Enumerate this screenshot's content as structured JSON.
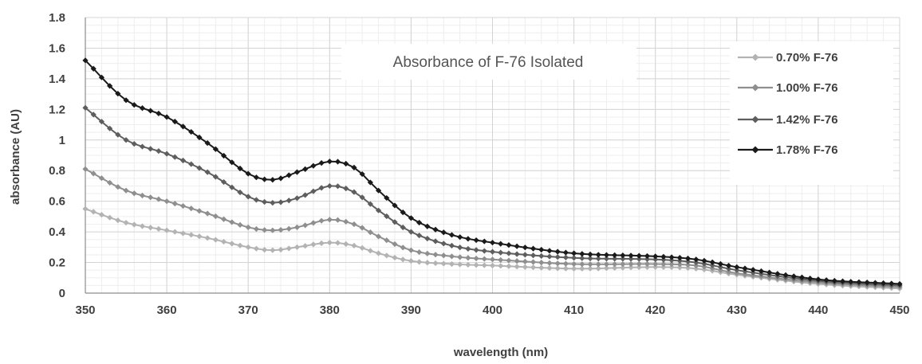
{
  "chart_data": {
    "type": "line",
    "title": "Absorbance of F-76 Isolated",
    "xlabel": "wavelength (nm)",
    "ylabel": "absorbance (AU)",
    "xlim": [
      350,
      450
    ],
    "ylim": [
      0,
      1.8
    ],
    "x_ticks": [
      "350",
      "360",
      "370",
      "380",
      "390",
      "400",
      "410",
      "420",
      "430",
      "440",
      "450"
    ],
    "y_ticks": [
      "0",
      "0.2",
      "0.4",
      "0.6",
      "0.8",
      "1",
      "1.2",
      "1.4",
      "1.6",
      "1.8"
    ],
    "grid": true,
    "legend_position": "top-right",
    "series": [
      {
        "name": "0.70% F-76",
        "color": "#b3b3b3",
        "points": [
          [
            350,
            0.55
          ],
          [
            355,
            0.46
          ],
          [
            360,
            0.41
          ],
          [
            365,
            0.36
          ],
          [
            370,
            0.3
          ],
          [
            373,
            0.28
          ],
          [
            376,
            0.3
          ],
          [
            380,
            0.33
          ],
          [
            383,
            0.31
          ],
          [
            386,
            0.26
          ],
          [
            390,
            0.21
          ],
          [
            395,
            0.19
          ],
          [
            400,
            0.18
          ],
          [
            410,
            0.16
          ],
          [
            420,
            0.17
          ],
          [
            425,
            0.16
          ],
          [
            430,
            0.12
          ],
          [
            440,
            0.06
          ],
          [
            450,
            0.03
          ]
        ]
      },
      {
        "name": "1.00% F-76",
        "color": "#8f8f8f",
        "points": [
          [
            350,
            0.81
          ],
          [
            355,
            0.67
          ],
          [
            360,
            0.6
          ],
          [
            365,
            0.52
          ],
          [
            370,
            0.43
          ],
          [
            373,
            0.41
          ],
          [
            376,
            0.43
          ],
          [
            380,
            0.48
          ],
          [
            383,
            0.45
          ],
          [
            386,
            0.37
          ],
          [
            390,
            0.28
          ],
          [
            395,
            0.24
          ],
          [
            400,
            0.22
          ],
          [
            410,
            0.19
          ],
          [
            420,
            0.19
          ],
          [
            425,
            0.18
          ],
          [
            430,
            0.13
          ],
          [
            440,
            0.07
          ],
          [
            450,
            0.04
          ]
        ]
      },
      {
        "name": "1.42% F-76",
        "color": "#5e5e5e",
        "points": [
          [
            350,
            1.21
          ],
          [
            355,
            1.0
          ],
          [
            360,
            0.91
          ],
          [
            365,
            0.79
          ],
          [
            370,
            0.63
          ],
          [
            373,
            0.59
          ],
          [
            376,
            0.62
          ],
          [
            380,
            0.7
          ],
          [
            383,
            0.66
          ],
          [
            386,
            0.54
          ],
          [
            390,
            0.4
          ],
          [
            395,
            0.31
          ],
          [
            400,
            0.27
          ],
          [
            410,
            0.23
          ],
          [
            420,
            0.22
          ],
          [
            425,
            0.2
          ],
          [
            430,
            0.15
          ],
          [
            440,
            0.08
          ],
          [
            450,
            0.05
          ]
        ]
      },
      {
        "name": "1.78% F-76",
        "color": "#1a1a1a",
        "points": [
          [
            350,
            1.52
          ],
          [
            355,
            1.26
          ],
          [
            360,
            1.15
          ],
          [
            365,
            0.98
          ],
          [
            370,
            0.78
          ],
          [
            373,
            0.74
          ],
          [
            376,
            0.79
          ],
          [
            380,
            0.86
          ],
          [
            383,
            0.82
          ],
          [
            386,
            0.67
          ],
          [
            390,
            0.49
          ],
          [
            395,
            0.38
          ],
          [
            400,
            0.33
          ],
          [
            410,
            0.26
          ],
          [
            420,
            0.24
          ],
          [
            425,
            0.22
          ],
          [
            430,
            0.17
          ],
          [
            440,
            0.09
          ],
          [
            450,
            0.06
          ]
        ]
      }
    ]
  }
}
